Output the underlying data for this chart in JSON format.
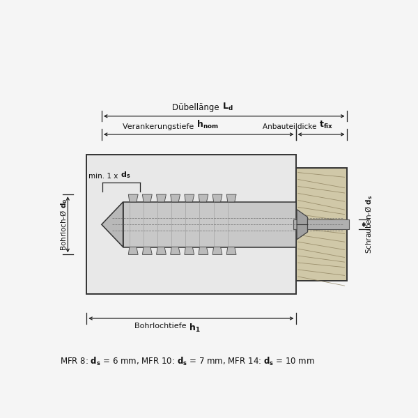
{
  "bg_color": "#f5f5f5",
  "wall_fill": "#e8e8e8",
  "wall_edge": "#333333",
  "wood_fill": "#d0c8a8",
  "wood_edge": "#333333",
  "anchor_fill": "#c8c8c8",
  "anchor_edge": "#333333",
  "screw_fill": "#b0b0b0",
  "dim_color": "#222222",
  "text_color": "#111111",
  "footnote_text": "MFR 8: ",
  "footnote_ds1": "= 6 mm, MFR 10: ",
  "footnote_ds2": "= 7 mm, MFR 14: ",
  "footnote_ds3": "= 10 mm"
}
